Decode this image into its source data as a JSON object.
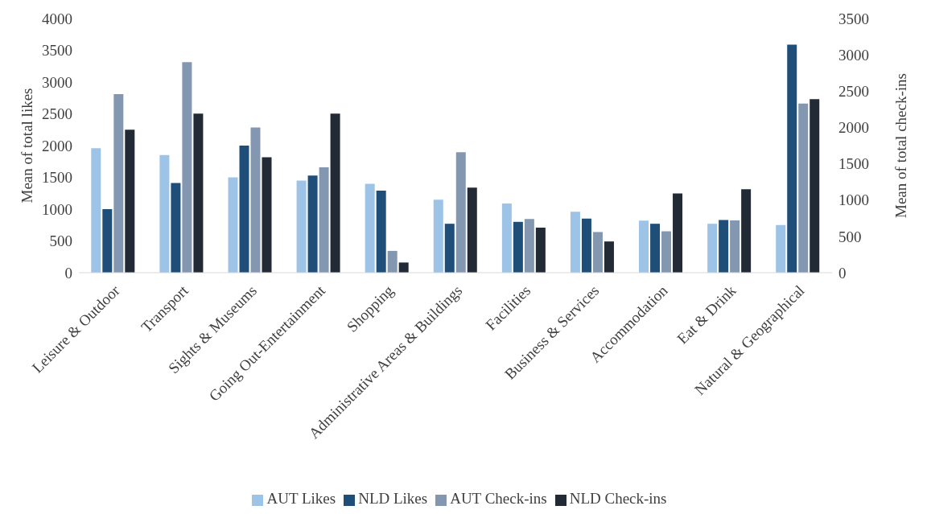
{
  "chart_data": {
    "type": "bar",
    "ylabel": "Mean of total likes",
    "y2label": "Mean of total check-ins",
    "categories": [
      "Leisure & Outdoor",
      "Transport",
      "Sights & Museums",
      "Going Out-Entertainment",
      "Shopping",
      "Administrative Areas & Buildings",
      "Facilities",
      "Business & Services",
      "Accommodation",
      "Eat & Drink",
      "Natural & Geographical"
    ],
    "series": [
      {
        "name": "AUT Likes",
        "color": "#9dc3e6",
        "values": [
          1960,
          1850,
          1500,
          1450,
          1400,
          1150,
          1090,
          960,
          820,
          770,
          750
        ]
      },
      {
        "name": "NLD Likes",
        "color": "#1f4e79",
        "values": [
          1000,
          1410,
          2000,
          1530,
          1290,
          770,
          800,
          850,
          770,
          830,
          3590
        ]
      },
      {
        "name": "AUT Check-ins",
        "color": "#8497b0",
        "axis": "y2",
        "values": [
          2460,
          2900,
          2000,
          1450,
          300,
          1660,
          740,
          560,
          570,
          720,
          2330
        ]
      },
      {
        "name": "NLD Check-ins",
        "color": "#222a35",
        "axis": "y2",
        "values": [
          1970,
          2190,
          1590,
          2190,
          140,
          1170,
          620,
          430,
          1090,
          1150,
          2390
        ]
      }
    ],
    "ylim": [
      0,
      4000
    ],
    "yticks": [
      0,
      500,
      1000,
      1500,
      2000,
      2500,
      3000,
      3500,
      4000
    ],
    "y2lim": [
      0,
      3500
    ],
    "y2ticks": [
      0,
      500,
      1000,
      1500,
      2000,
      2500,
      3000,
      3500
    ],
    "legend": "bottom"
  }
}
